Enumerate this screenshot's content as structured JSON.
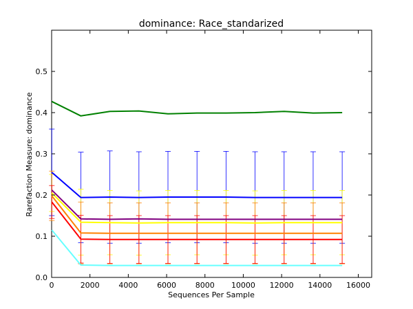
{
  "chart_data": {
    "type": "line",
    "title": "dominance: Race_standarized",
    "xlabel": "Sequences Per Sample",
    "ylabel": "Rarefaction Measure: dominance",
    "xlim": [
      0,
      16700
    ],
    "ylim": [
      0.0,
      0.6
    ],
    "xticks": [
      0,
      2000,
      4000,
      6000,
      8000,
      10000,
      12000,
      14000,
      16000
    ],
    "yticks": [
      0.0,
      0.1,
      0.2,
      0.3,
      0.4,
      0.5
    ],
    "grid": false,
    "legend": "none",
    "x": [
      10,
      1525,
      3040,
      4555,
      6070,
      7585,
      9100,
      10615,
      12130,
      13645,
      15160
    ],
    "series": [
      {
        "color": "#008000",
        "values": [
          0.427,
          0.392,
          0.403,
          0.404,
          0.397,
          0.399,
          0.399,
          0.4,
          0.403,
          0.399,
          0.4
        ]
      },
      {
        "color": "#0000ff",
        "values": [
          0.255,
          0.194,
          0.195,
          0.194,
          0.195,
          0.195,
          0.195,
          0.194,
          0.194,
          0.194,
          0.194
        ],
        "error": [
          0.105,
          0.11,
          0.112,
          0.111,
          0.111,
          0.111,
          0.111,
          0.111,
          0.111,
          0.111,
          0.111
        ]
      },
      {
        "color": "#800080",
        "values": [
          0.212,
          0.142,
          0.141,
          0.142,
          0.141,
          0.141,
          0.141,
          0.141,
          0.141,
          0.141,
          0.141
        ]
      },
      {
        "color": "#ffff00",
        "values": [
          0.205,
          0.134,
          0.133,
          0.132,
          0.133,
          0.133,
          0.133,
          0.132,
          0.133,
          0.133,
          0.133
        ],
        "error": [
          0.045,
          0.08,
          0.078,
          0.078,
          0.078,
          0.078,
          0.078,
          0.078,
          0.078,
          0.078,
          0.078
        ]
      },
      {
        "color": "#ff8000",
        "values": [
          0.198,
          0.108,
          0.107,
          0.107,
          0.107,
          0.107,
          0.107,
          0.107,
          0.107,
          0.107,
          0.107
        ],
        "error": [
          0.06,
          0.075,
          0.074,
          0.074,
          0.074,
          0.074,
          0.074,
          0.074,
          0.074,
          0.074,
          0.074
        ]
      },
      {
        "color": "#ff0000",
        "values": [
          0.183,
          0.093,
          0.092,
          0.092,
          0.092,
          0.092,
          0.092,
          0.092,
          0.092,
          0.092,
          0.092
        ],
        "error": [
          0.04,
          0.058,
          0.058,
          0.058,
          0.058,
          0.058,
          0.058,
          0.058,
          0.058,
          0.058,
          0.058
        ]
      },
      {
        "color": "#66ffff",
        "values": [
          0.115,
          0.03,
          0.029,
          0.029,
          0.029,
          0.029,
          0.029,
          0.029,
          0.029,
          0.029,
          0.029
        ]
      }
    ]
  }
}
